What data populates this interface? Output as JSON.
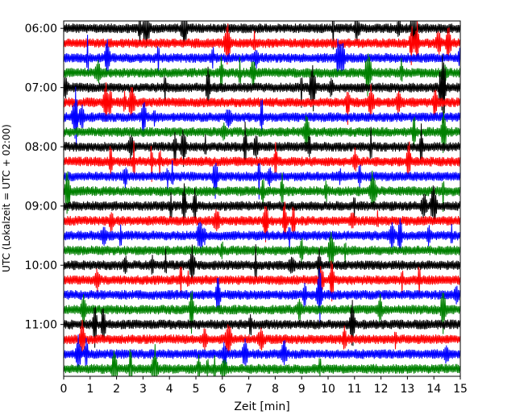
{
  "chart_data": {
    "type": "line",
    "title": "",
    "xlabel": "Zeit  [min]",
    "ylabel": "UTC (Lokalzeit = UTC + 02:00)",
    "xlim": [
      0,
      15
    ],
    "x_ticks": [
      "0",
      "1",
      "2",
      "3",
      "4",
      "5",
      "6",
      "7",
      "8",
      "9",
      "10",
      "11",
      "12",
      "13",
      "14",
      "15"
    ],
    "y_ticks": [
      "06:00",
      "07:00",
      "08:00",
      "09:00",
      "10:00",
      "11:00"
    ],
    "row_interval_minutes": 15,
    "first_row": "06:00",
    "last_row": "11:45",
    "rows": 24,
    "color_cycle": [
      "#000000",
      "#ff0000",
      "#0000ff",
      "#008000"
    ],
    "grid": false,
    "legend": "none"
  }
}
